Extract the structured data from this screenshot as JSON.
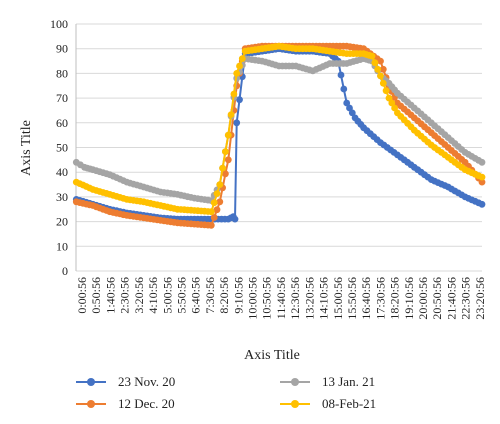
{
  "chart_data": {
    "type": "line",
    "xlabel": "Axis Title",
    "ylabel": "Axis Title",
    "ylim": [
      0,
      100
    ],
    "yticks": [
      0,
      10,
      20,
      30,
      40,
      50,
      60,
      70,
      80,
      90,
      100
    ],
    "grid": "horizontal",
    "legend": "bottom",
    "x_tick_labels": [
      "0:00:56",
      "0:50:56",
      "1:40:56",
      "2:30:56",
      "3:20:56",
      "4:10:56",
      "5:00:56",
      "5:50:56",
      "6:40:56",
      "7:30:56",
      "8:20:56",
      "9:10:56",
      "10:00:56",
      "10:50:56",
      "11:40:56",
      "12:30:56",
      "13:20:56",
      "14:10:56",
      "15:00:56",
      "15:50:56",
      "16:40:56",
      "17:30:56",
      "18:20:56",
      "19:10:56",
      "20:00:56",
      "20:50:56",
      "21:40:56",
      "22:30:56",
      "23:20:56"
    ],
    "series": [
      {
        "name": "23 Nov. 20",
        "color": "#4472C4",
        "points": [
          [
            0.02,
            29
          ],
          [
            1,
            27
          ],
          [
            2,
            25
          ],
          [
            3,
            23.5
          ],
          [
            4,
            22.5
          ],
          [
            5,
            21.5
          ],
          [
            6,
            21
          ],
          [
            7,
            21
          ],
          [
            8,
            21
          ],
          [
            9,
            21
          ],
          [
            9.3,
            22
          ],
          [
            9.4,
            21
          ],
          [
            9.5,
            60
          ],
          [
            10,
            88
          ],
          [
            11,
            89
          ],
          [
            12,
            90
          ],
          [
            13,
            89
          ],
          [
            14,
            89
          ],
          [
            15,
            88
          ],
          [
            15.5,
            85
          ],
          [
            16,
            68
          ],
          [
            16.5,
            62
          ],
          [
            17,
            58
          ],
          [
            18,
            52
          ],
          [
            19,
            47
          ],
          [
            20,
            42
          ],
          [
            21,
            37
          ],
          [
            22,
            34
          ],
          [
            23,
            30
          ],
          [
            24,
            27
          ]
        ]
      },
      {
        "name": "12 Dec. 20",
        "color": "#ED7D31",
        "points": [
          [
            0.02,
            28
          ],
          [
            1,
            26.5
          ],
          [
            2,
            24
          ],
          [
            3,
            22.5
          ],
          [
            4,
            21.5
          ],
          [
            5,
            20.5
          ],
          [
            6,
            19.5
          ],
          [
            7,
            19
          ],
          [
            8,
            18.5
          ],
          [
            8.5,
            28
          ],
          [
            9,
            45
          ],
          [
            9.5,
            75
          ],
          [
            10,
            90
          ],
          [
            11,
            91
          ],
          [
            12,
            91
          ],
          [
            13,
            91
          ],
          [
            14,
            91
          ],
          [
            15,
            91
          ],
          [
            16,
            91
          ],
          [
            17,
            90
          ],
          [
            18,
            85
          ],
          [
            18.5,
            75
          ],
          [
            19,
            68
          ],
          [
            20,
            62
          ],
          [
            21,
            56
          ],
          [
            22,
            50
          ],
          [
            23,
            44
          ],
          [
            24,
            36
          ]
        ]
      },
      {
        "name": "13 Jan. 21",
        "color": "#A5A5A5",
        "points": [
          [
            0.02,
            44
          ],
          [
            0.5,
            42
          ],
          [
            1,
            41
          ],
          [
            2,
            39
          ],
          [
            3,
            36
          ],
          [
            4,
            34
          ],
          [
            5,
            32
          ],
          [
            6,
            31
          ],
          [
            7,
            29.5
          ],
          [
            8,
            28.5
          ],
          [
            8.5,
            35
          ],
          [
            9,
            55
          ],
          [
            9.5,
            78
          ],
          [
            10,
            86
          ],
          [
            11,
            85
          ],
          [
            12,
            83
          ],
          [
            13,
            83
          ],
          [
            14,
            81
          ],
          [
            15,
            84
          ],
          [
            16,
            84
          ],
          [
            17,
            86
          ],
          [
            17.5,
            85
          ],
          [
            18,
            79
          ],
          [
            18.5,
            76
          ],
          [
            19,
            72
          ],
          [
            20,
            66
          ],
          [
            21,
            60
          ],
          [
            22,
            54
          ],
          [
            23,
            48
          ],
          [
            24,
            44
          ]
        ]
      },
      {
        "name": "08-Feb-21",
        "color": "#FFC000",
        "points": [
          [
            0.02,
            36
          ],
          [
            1,
            33
          ],
          [
            2,
            31
          ],
          [
            3,
            29
          ],
          [
            4,
            28
          ],
          [
            5,
            26.5
          ],
          [
            6,
            25
          ],
          [
            7,
            24.5
          ],
          [
            8,
            24
          ],
          [
            8.5,
            35
          ],
          [
            9,
            55
          ],
          [
            9.5,
            80
          ],
          [
            10,
            89
          ],
          [
            11,
            90
          ],
          [
            12,
            91
          ],
          [
            13,
            90
          ],
          [
            14,
            90
          ],
          [
            15,
            89
          ],
          [
            16,
            88
          ],
          [
            17,
            88
          ],
          [
            17.5,
            87
          ],
          [
            18,
            79
          ],
          [
            18.5,
            70
          ],
          [
            19,
            64
          ],
          [
            20,
            57
          ],
          [
            21,
            51
          ],
          [
            22,
            46
          ],
          [
            23,
            41
          ],
          [
            24,
            38
          ]
        ]
      }
    ]
  }
}
